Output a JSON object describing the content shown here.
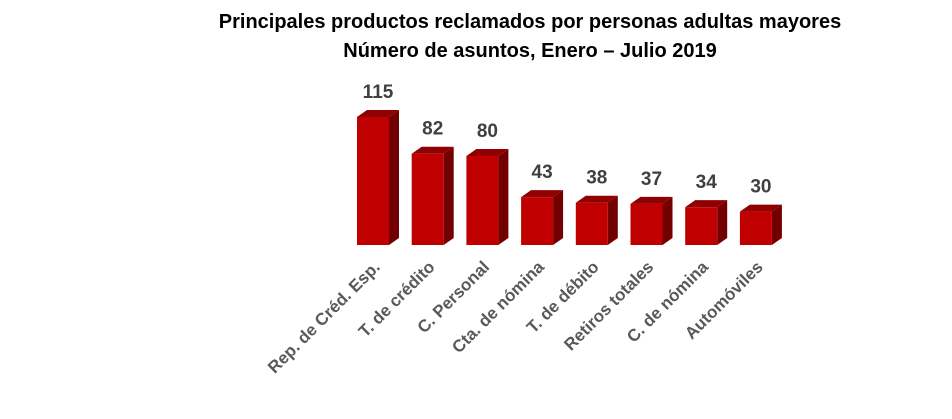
{
  "chart_data": {
    "type": "bar3d",
    "title": "Principales productos reclamados por personas adultas mayores",
    "subtitle": "Número de asuntos, Enero – Julio 2019",
    "categories": [
      "Rep. de Créd. Esp.",
      "T. de crédito",
      "C. Personal",
      "Cta. de nómina",
      "T. de débito",
      "Retiros totales",
      "C. de nómina",
      "Automóviles"
    ],
    "values": [
      115,
      82,
      80,
      43,
      38,
      37,
      34,
      30
    ],
    "color": "#c00000"
  }
}
